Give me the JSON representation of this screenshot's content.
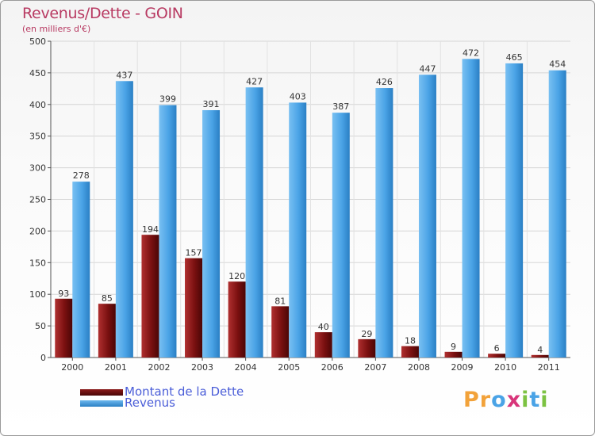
{
  "title": "Revenus/Dette - GOIN",
  "subtitle": "(en milliers d'€)",
  "chart_data": {
    "type": "bar",
    "title": "Revenus/Dette - GOIN",
    "subtitle": "(en milliers d'€)",
    "categories": [
      "2000",
      "2001",
      "2002",
      "2003",
      "2004",
      "2005",
      "2006",
      "2007",
      "2008",
      "2009",
      "2010",
      "2011"
    ],
    "series": [
      {
        "name": "Montant de la Dette",
        "color": "#8b1a1a",
        "values": [
          93,
          85,
          194,
          157,
          120,
          81,
          40,
          29,
          18,
          9,
          6,
          4
        ]
      },
      {
        "name": "Revenus",
        "color": "#4aa3e6",
        "values": [
          278,
          437,
          399,
          391,
          427,
          403,
          387,
          426,
          447,
          472,
          465,
          454
        ]
      }
    ],
    "ylim": [
      0,
      500
    ],
    "yticks": [
      0,
      50,
      100,
      150,
      200,
      250,
      300,
      350,
      400,
      450,
      500
    ],
    "grid": true,
    "legend_position": "bottom-left"
  },
  "legend": {
    "debt_label": "Montant de la Dette",
    "revenue_label": "Revenus"
  },
  "logo": {
    "letters": [
      "P",
      "r",
      "o",
      "x",
      "i",
      "t",
      "i"
    ],
    "colors": [
      "#f2a23a",
      "#f2a23a",
      "#4aa3e6",
      "#d8357a",
      "#7cc242",
      "#4aa3e6",
      "#7cc242"
    ]
  }
}
